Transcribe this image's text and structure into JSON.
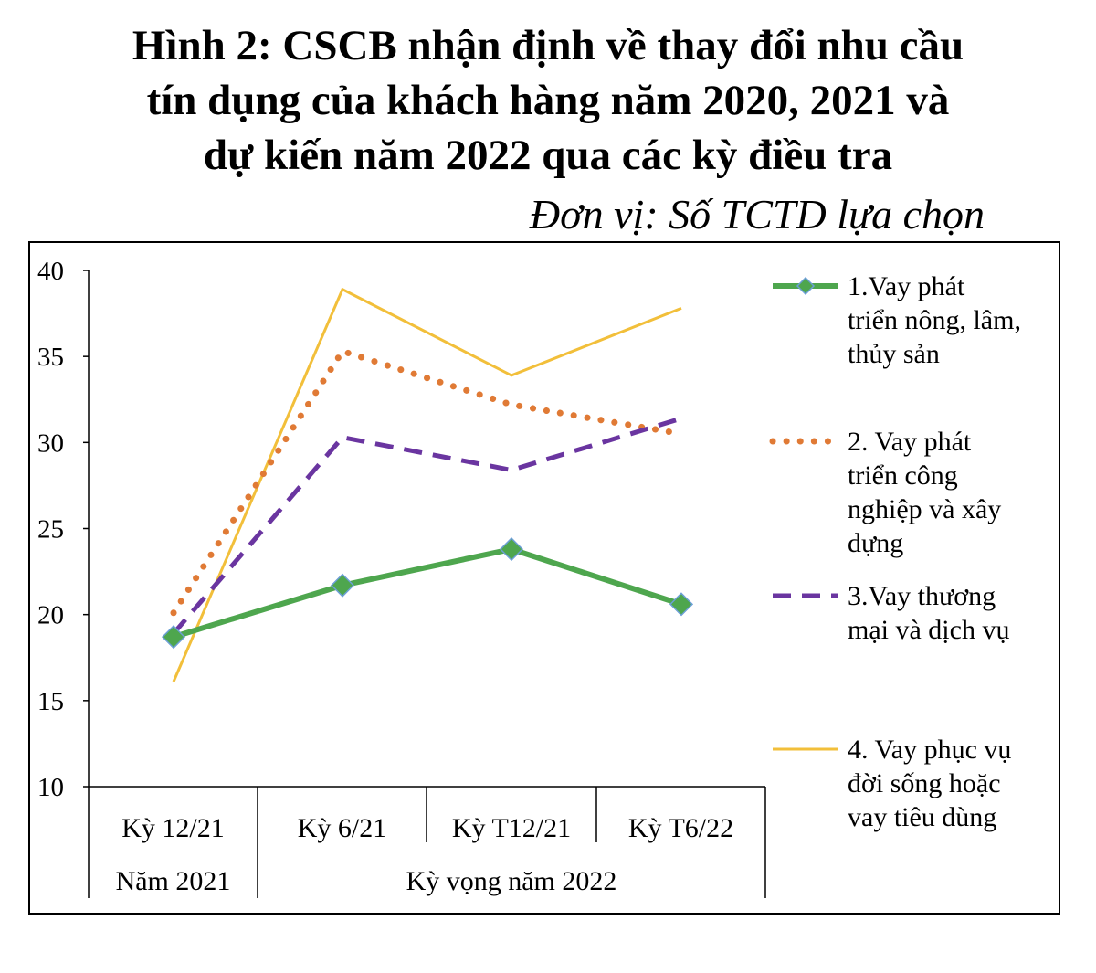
{
  "chart_data": {
    "type": "line",
    "title": "Hình 2: CSCB nhận định về thay đổi nhu cầu tín dụng của khách hàng năm 2020, 2021 và dự kiến năm 2022 qua các kỳ điều tra",
    "title_lines": [
      "Hình 2: CSCB nhận định về thay đổi nhu cầu",
      "tín dụng của khách hàng năm 2020, 2021 và",
      "dự kiến năm 2022 qua các kỳ điều tra"
    ],
    "unit_label": "Đơn vị: Số TCTD lựa chọn",
    "categories": [
      "Kỳ 12/21",
      "Kỳ 6/21",
      "Kỳ T12/21",
      "Kỳ T6/22"
    ],
    "category_groups": [
      {
        "label": "Năm 2021",
        "span": 1
      },
      {
        "label": "Kỳ vọng năm 2022",
        "span": 3
      }
    ],
    "ylim": [
      10,
      40
    ],
    "yticks": [
      10,
      15,
      20,
      25,
      30,
      35,
      40
    ],
    "grid": false,
    "legend_position": "right",
    "series": [
      {
        "label_lines": [
          "1.Vay phát",
          "triển nông, lâm,",
          "thủy sản"
        ],
        "values": [
          18.7,
          21.7,
          23.8,
          20.6
        ],
        "color": "#4ea64e",
        "style": "solid-diamond"
      },
      {
        "label_lines": [
          "2. Vay phát",
          "triển công",
          "nghiệp  và xây",
          "dựng"
        ],
        "values": [
          20.1,
          35.3,
          32.2,
          30.5
        ],
        "color": "#e07a35",
        "style": "dotted"
      },
      {
        "label_lines": [
          "3.Vay thương",
          "mại và dịch  vụ"
        ],
        "values": [
          18.9,
          30.3,
          28.4,
          31.4
        ],
        "color": "#6a35a0",
        "style": "dashed"
      },
      {
        "label_lines": [
          "4.  Vay phục vụ",
          "đời sống hoặc",
          "vay tiêu dùng"
        ],
        "values": [
          16.1,
          38.9,
          33.9,
          37.8
        ],
        "color": "#f2bf3a",
        "style": "thin-solid"
      }
    ]
  }
}
